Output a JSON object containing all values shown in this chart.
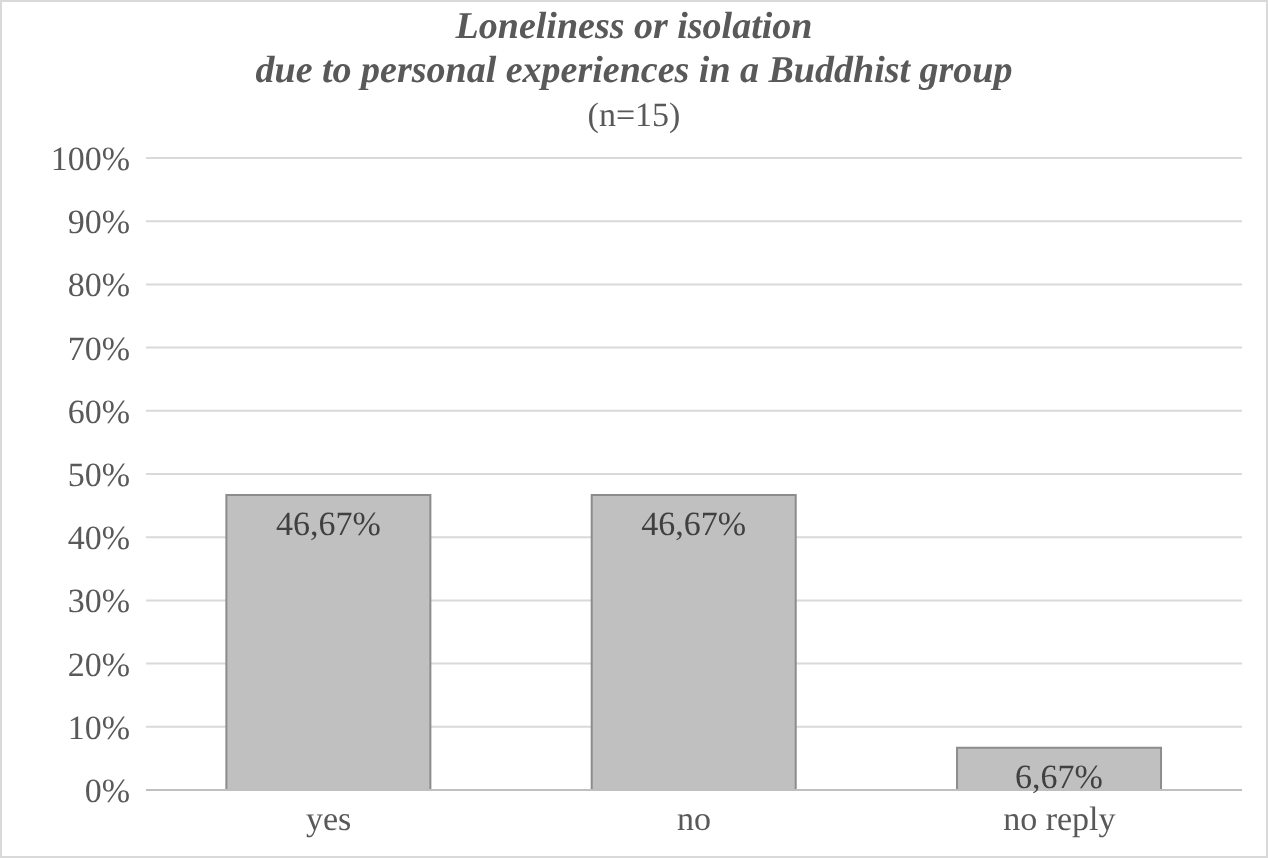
{
  "chart_data": {
    "type": "bar",
    "title": "Loneliness or isolation\ndue to personal experiences in a Buddhist group",
    "subtitle": "(n=15)",
    "categories": [
      "yes",
      "no",
      "no reply"
    ],
    "values": [
      46.67,
      46.67,
      6.67
    ],
    "value_labels": [
      "46,67%",
      "46,67%",
      "6,67%"
    ],
    "color": "#c0c0c0",
    "ylim": [
      0,
      100
    ],
    "yticks": [
      {
        "value": 0,
        "label": "0%"
      },
      {
        "value": 10,
        "label": "10%"
      },
      {
        "value": 20,
        "label": "20%"
      },
      {
        "value": 30,
        "label": "30%"
      },
      {
        "value": 40,
        "label": "40%"
      },
      {
        "value": 50,
        "label": "50%"
      },
      {
        "value": 60,
        "label": "60%"
      },
      {
        "value": 70,
        "label": "70%"
      },
      {
        "value": 80,
        "label": "80%"
      },
      {
        "value": 90,
        "label": "90%"
      },
      {
        "value": 100,
        "label": "100%"
      }
    ],
    "grid": "y",
    "legend": false
  }
}
